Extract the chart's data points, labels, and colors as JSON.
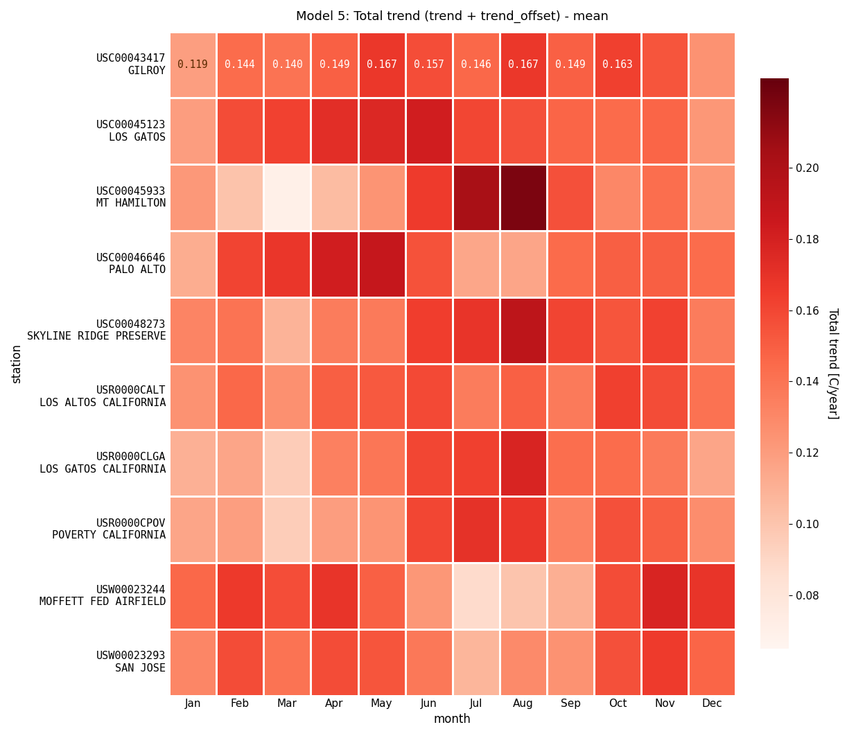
{
  "title": "Model 5: Total trend (trend + trend_offset) - mean",
  "xlabel": "month",
  "ylabel": "station",
  "colorbar_label": "Total trend [C/year]",
  "months": [
    "Jan",
    "Feb",
    "Mar",
    "Apr",
    "May",
    "Jun",
    "Jul",
    "Aug",
    "Sep",
    "Oct",
    "Nov",
    "Dec"
  ],
  "stations": [
    "USC00043417\nGILROY",
    "USC00045123\nLOS GATOS",
    "USC00045933\nMT HAMILTON",
    "USC00046646\nPALO ALTO",
    "USC00048273\nSKYLINE RIDGE PRESERVE",
    "USR0000CALT\nLOS ALTOS CALIFORNIA",
    "USR0000CLGA\nLOS GATOS CALIFORNIA",
    "USR0000CPOV\nPOVERTY CALIFORNIA",
    "USW00023244\nMOFFETT FED AIRFIELD",
    "USW00023293\nSAN JOSE"
  ],
  "data": [
    [
      0.119,
      0.144,
      0.14,
      0.149,
      0.167,
      0.157,
      0.146,
      0.167,
      0.149,
      0.163,
      0.154,
      0.125
    ],
    [
      0.12,
      0.158,
      0.162,
      0.172,
      0.176,
      0.182,
      0.16,
      0.156,
      0.147,
      0.145,
      0.147,
      0.123
    ],
    [
      0.122,
      0.101,
      0.07,
      0.105,
      0.124,
      0.165,
      0.203,
      0.218,
      0.156,
      0.13,
      0.143,
      0.123
    ],
    [
      0.112,
      0.161,
      0.168,
      0.182,
      0.188,
      0.155,
      0.115,
      0.116,
      0.145,
      0.15,
      0.15,
      0.144
    ],
    [
      0.132,
      0.14,
      0.109,
      0.136,
      0.137,
      0.164,
      0.169,
      0.192,
      0.161,
      0.154,
      0.162,
      0.136
    ],
    [
      0.125,
      0.146,
      0.126,
      0.15,
      0.152,
      0.159,
      0.136,
      0.149,
      0.137,
      0.163,
      0.158,
      0.141
    ],
    [
      0.11,
      0.116,
      0.096,
      0.134,
      0.139,
      0.16,
      0.163,
      0.178,
      0.143,
      0.144,
      0.137,
      0.116
    ],
    [
      0.116,
      0.119,
      0.095,
      0.12,
      0.124,
      0.16,
      0.17,
      0.168,
      0.133,
      0.156,
      0.15,
      0.128
    ],
    [
      0.146,
      0.166,
      0.157,
      0.169,
      0.149,
      0.123,
      0.088,
      0.1,
      0.111,
      0.158,
      0.178,
      0.169
    ],
    [
      0.131,
      0.158,
      0.14,
      0.158,
      0.154,
      0.138,
      0.108,
      0.129,
      0.125,
      0.156,
      0.165,
      0.147
    ]
  ],
  "vmin": 0.065,
  "vmax": 0.225,
  "cmap": "Reds",
  "figsize": [
    12.22,
    10.62
  ],
  "dpi": 100,
  "title_fontsize": 13,
  "label_fontsize": 12,
  "tick_fontsize": 11,
  "annot_fontsize": 10.5,
  "colorbar_tick_values": [
    0.08,
    0.1,
    0.12,
    0.14,
    0.16,
    0.18,
    0.2
  ],
  "linewidths": 2.0,
  "linecolor": "white"
}
